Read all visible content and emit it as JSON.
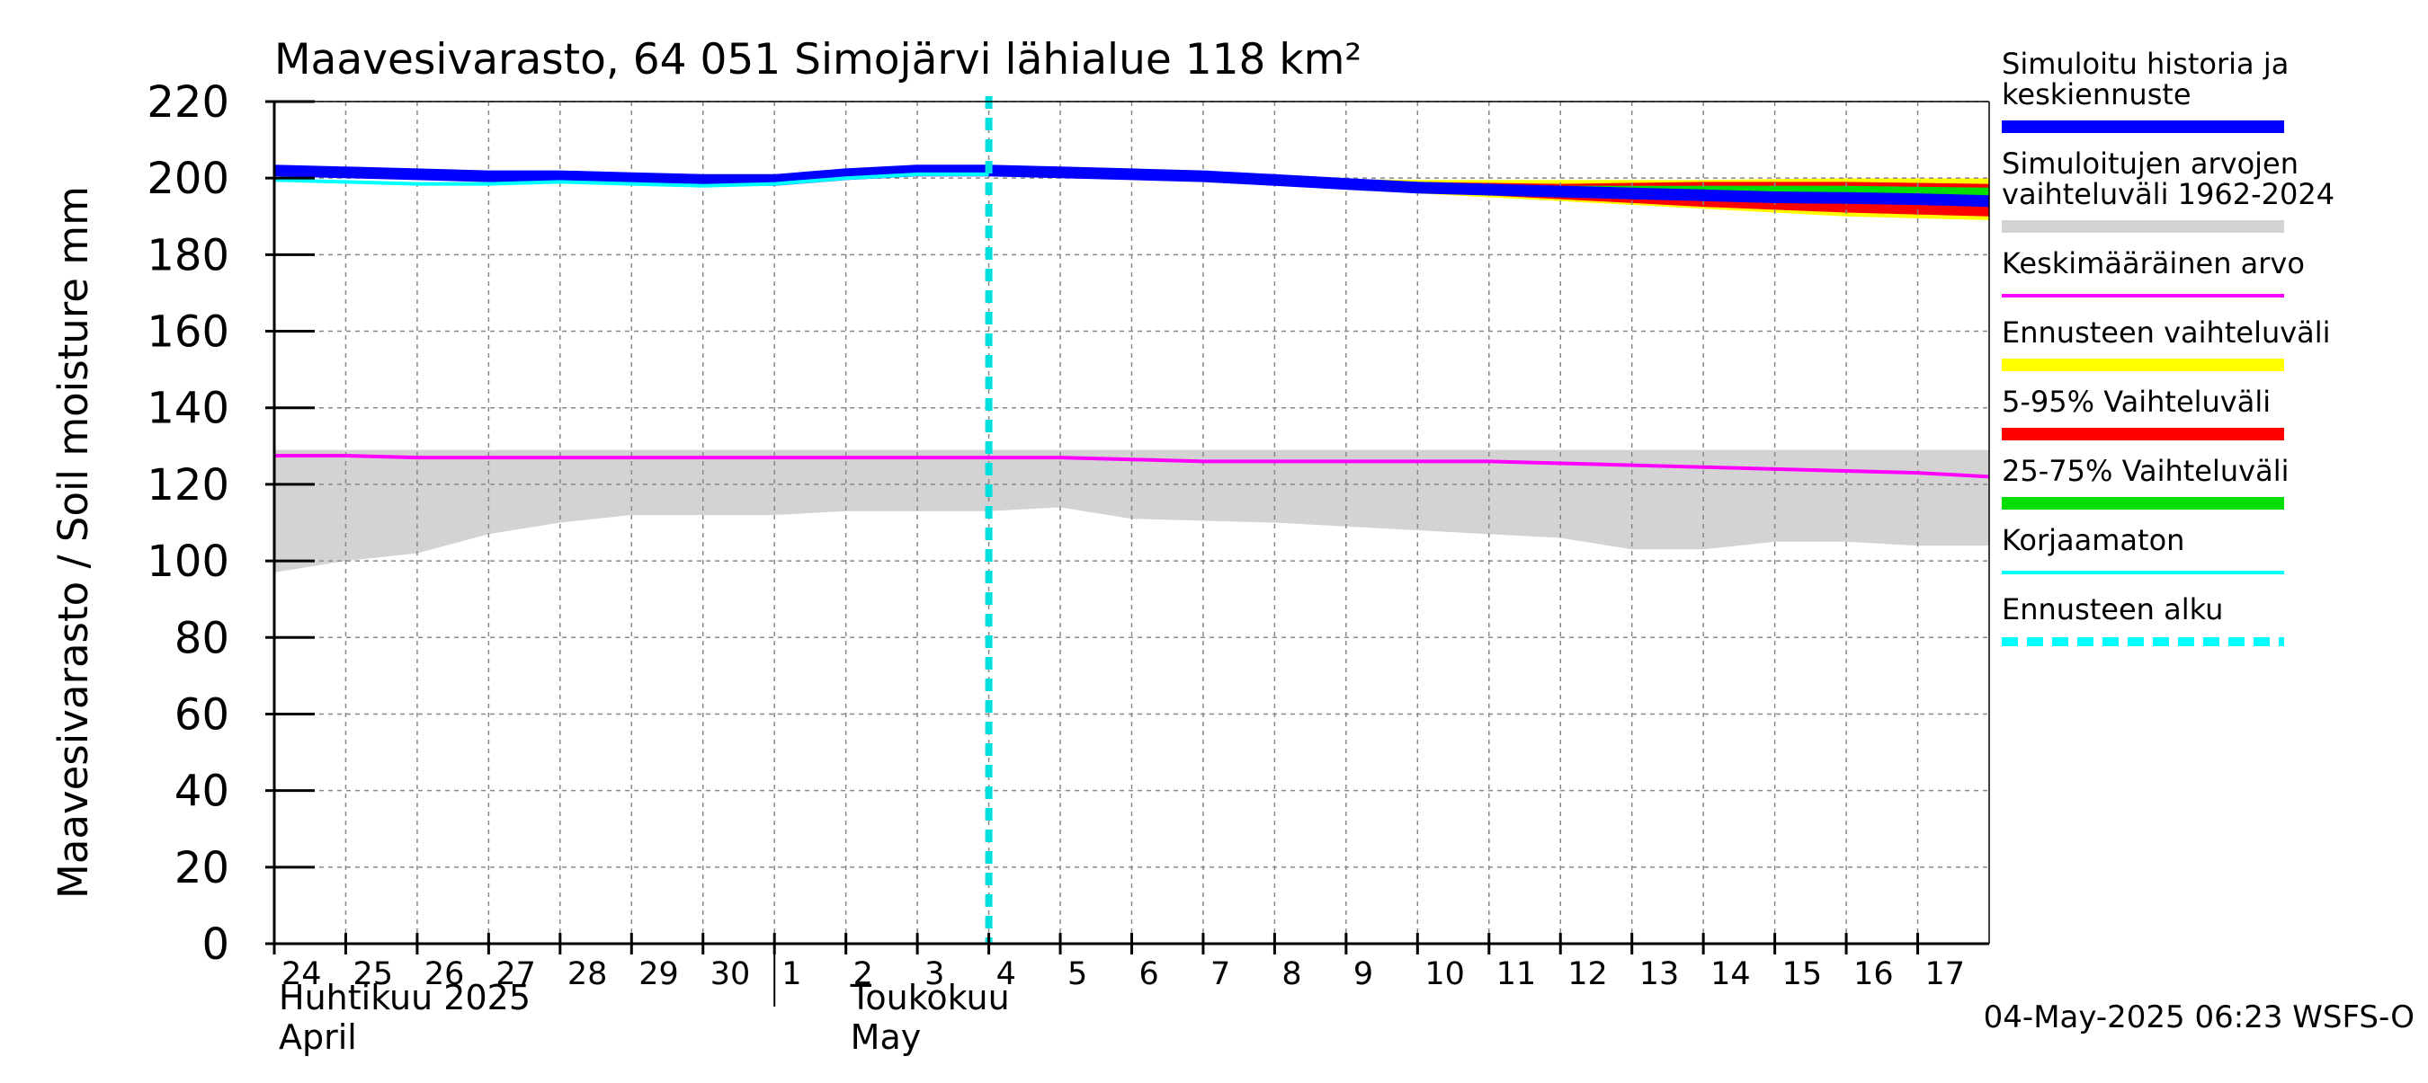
{
  "chart_data": {
    "type": "line",
    "title": "Maavesivarasto, 64 051 Simojärvi lähialue 118 km²",
    "ylabel": "Maavesivarasto / Soil moisture   mm",
    "ylim": [
      0,
      220
    ],
    "yticks": [
      0,
      20,
      40,
      60,
      80,
      100,
      120,
      140,
      160,
      180,
      200,
      220
    ],
    "grid": true,
    "xlim": [
      0,
      24
    ],
    "x_tick_labels": [
      "24",
      "25",
      "26",
      "27",
      "28",
      "29",
      "30",
      "1",
      "2",
      "3",
      "4",
      "5",
      "6",
      "7",
      "8",
      "9",
      "10",
      "11",
      "12",
      "13",
      "14",
      "15",
      "16",
      "17"
    ],
    "month_labels": [
      {
        "fi": "Huhtikuu  2025",
        "en": "April",
        "x": 0
      },
      {
        "fi": "Toukokuu",
        "en": "May",
        "x": 8
      }
    ],
    "month_divider_x": 7,
    "forecast_start_x": 10,
    "legend_position": "right",
    "timestamp": "04-May-2025 06:23 WSFS-O",
    "colors": {
      "history": "#0000ff",
      "range_hist": "#d3d3d3",
      "mean": "#ff00ff",
      "forecast_range": "#ffff00",
      "p5_95": "#ff0000",
      "p25_75": "#00dd00",
      "uncorrected": "#00ffff",
      "forecast_start": "#00e0e0"
    },
    "legend": [
      {
        "label": "Simuloitu historia ja keskiennuste",
        "lines": [
          "Simuloitu historia ja",
          "keskiennuste"
        ],
        "color": "#0000ff",
        "style": "thick"
      },
      {
        "label": "Simuloitujen arvojen vaihteluväli 1962-2024",
        "lines": [
          "Simuloitujen arvojen",
          "vaihteluväli 1962-2024"
        ],
        "color": "#d3d3d3",
        "style": "thick"
      },
      {
        "label": "Keskimääräinen arvo",
        "lines": [
          "Keskimääräinen arvo"
        ],
        "color": "#ff00ff",
        "style": "thin"
      },
      {
        "label": "Ennusteen vaihteluväli",
        "lines": [
          "Ennusteen vaihteluväli"
        ],
        "color": "#ffff00",
        "style": "thick"
      },
      {
        "label": "5-95% Vaihteluväli",
        "lines": [
          "5-95% Vaihteluväli"
        ],
        "color": "#ff0000",
        "style": "thick"
      },
      {
        "label": "25-75% Vaihteluväli",
        "lines": [
          "25-75% Vaihteluväli"
        ],
        "color": "#00dd00",
        "style": "thick"
      },
      {
        "label": "Korjaamaton",
        "lines": [
          "Korjaamaton"
        ],
        "color": "#00ffff",
        "style": "thin"
      },
      {
        "label": "Ennusteen alku",
        "lines": [
          "Ennusteen alku"
        ],
        "color": "#00ffff",
        "style": "dashed"
      }
    ],
    "series": [
      {
        "name": "Simuloitu historia ja keskiennuste",
        "x": [
          0,
          1,
          2,
          3,
          4,
          5,
          6,
          7,
          8,
          9,
          10,
          11,
          12,
          13,
          14,
          15,
          16,
          17,
          18,
          19,
          20,
          21,
          22,
          23,
          24
        ],
        "values": [
          202,
          201.5,
          201,
          200.5,
          200.5,
          200,
          199.5,
          199.5,
          201,
          202,
          202,
          201.5,
          201,
          200.5,
          199.5,
          198.5,
          197.5,
          197,
          196.5,
          196,
          195.5,
          195,
          194.8,
          194.5,
          194
        ]
      },
      {
        "name": "Korjaamaton",
        "x": [
          0,
          1,
          2,
          3,
          4,
          5,
          6,
          7,
          8,
          9,
          10
        ],
        "values": [
          199.5,
          199,
          198.5,
          198.5,
          199,
          198.5,
          198,
          198.5,
          200,
          201,
          201
        ]
      },
      {
        "name": "Keskimääräinen arvo",
        "x": [
          0,
          1,
          2,
          3,
          4,
          5,
          6,
          7,
          8,
          9,
          10,
          11,
          12,
          13,
          14,
          15,
          16,
          17,
          18,
          19,
          20,
          21,
          22,
          23,
          24
        ],
        "values": [
          127.5,
          127.5,
          127,
          127,
          127,
          127,
          127,
          127,
          127,
          127,
          127,
          127,
          126.5,
          126,
          126,
          126,
          126,
          126,
          125.5,
          125,
          124.5,
          124,
          123.5,
          123,
          122
        ]
      },
      {
        "name": "Simuloitujen arvojen vaihteluväli 1962-2024",
        "x": [
          0,
          1,
          2,
          3,
          4,
          5,
          6,
          7,
          8,
          9,
          10,
          11,
          12,
          13,
          14,
          15,
          16,
          17,
          18,
          19,
          20,
          21,
          22,
          23,
          24
        ],
        "upper": [
          129,
          129,
          129,
          129,
          129,
          129,
          129,
          129,
          129,
          129,
          129,
          129,
          129,
          129,
          129,
          129,
          129,
          129,
          129,
          129,
          129,
          129,
          129,
          129,
          129
        ],
        "lower": [
          97,
          100,
          102,
          107,
          110,
          112,
          112,
          112,
          113,
          113,
          113,
          114,
          111,
          110.5,
          110,
          109,
          108,
          107,
          106,
          103,
          103,
          105,
          105,
          104,
          104
        ]
      },
      {
        "name": "Ennusteen vaihteluväli",
        "x": [
          10,
          12,
          14,
          16,
          18,
          20,
          22,
          24
        ],
        "upper": [
          202,
          201.5,
          200,
          199.5,
          199.5,
          199.5,
          200,
          200
        ],
        "lower": [
          202,
          201,
          199,
          196,
          194,
          192,
          190,
          189
        ]
      },
      {
        "name": "5-95% Vaihteluväli",
        "x": [
          10,
          12,
          14,
          16,
          18,
          20,
          22,
          24
        ],
        "upper": [
          202,
          201.5,
          199.8,
          199,
          198.5,
          199,
          199,
          198.5
        ],
        "lower": [
          202,
          201,
          199,
          196.5,
          194.5,
          192.5,
          191,
          190
        ]
      },
      {
        "name": "25-75% Vaihteluväli",
        "x": [
          10,
          12,
          14,
          16,
          18,
          20,
          22,
          24
        ],
        "upper": [
          202,
          201.3,
          199.5,
          198.5,
          198,
          198,
          198,
          197.5
        ],
        "lower": [
          202,
          201.2,
          199.3,
          197.5,
          196.5,
          195.5,
          195,
          194.5
        ]
      }
    ]
  }
}
